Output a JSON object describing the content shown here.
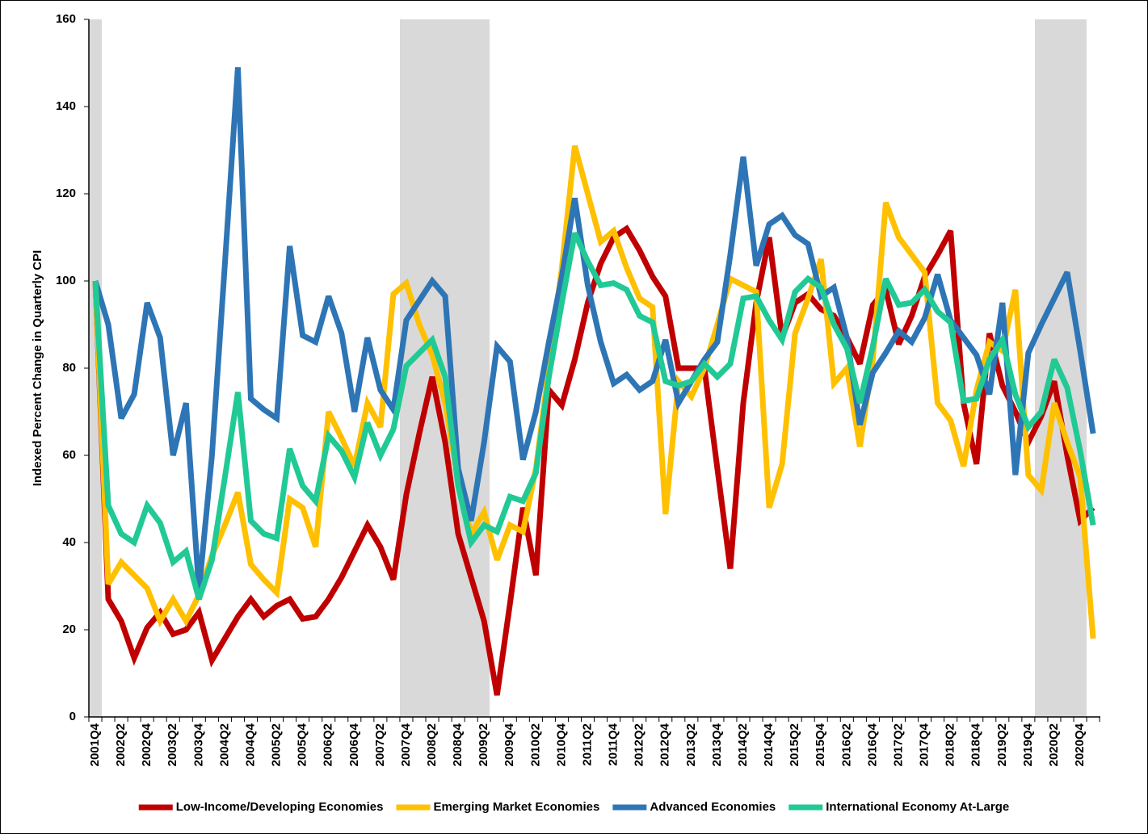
{
  "chart_data": {
    "type": "line",
    "y_label": "Indexed Percent Change in Quarterly CPI",
    "categories": [
      "2001Q4",
      null,
      "2002Q2",
      null,
      "2002Q4",
      null,
      "2003Q2",
      null,
      "2003Q4",
      null,
      "2004Q2",
      null,
      "2004Q4",
      null,
      "2005Q2",
      null,
      "2005Q4",
      null,
      "2006Q2",
      null,
      "2006Q4",
      null,
      "2007Q2",
      null,
      "2007Q4",
      null,
      "2008Q2",
      null,
      "2008Q4",
      null,
      "2009Q2",
      null,
      "2009Q4",
      null,
      "2010Q2",
      null,
      "2010Q4",
      null,
      "2011Q2",
      null,
      "2011Q4",
      null,
      "2012Q2",
      null,
      "2012Q4",
      null,
      "2013Q2",
      null,
      "2013Q4",
      null,
      "2014Q2",
      null,
      "2014Q4",
      null,
      "2015Q2",
      null,
      "2015Q4",
      null,
      "2016Q2",
      null,
      "2016Q4",
      null,
      "2017Q2",
      null,
      "2017Q4",
      null,
      "2018Q2",
      null,
      "2018Q4",
      null,
      "2019Q2",
      null,
      "2019Q4",
      null,
      "2020Q2",
      null,
      "2020Q4",
      null
    ],
    "series": [
      {
        "name": "Low-Income/Developing Economies",
        "color": "#c00000",
        "values": [
          100,
          27,
          22,
          13.5,
          20.5,
          24,
          19,
          20,
          24,
          13,
          18,
          23,
          27,
          23,
          25.5,
          27,
          22.5,
          23,
          27,
          32,
          38,
          44,
          39,
          31.5,
          51,
          65,
          78,
          63,
          42,
          32,
          22,
          5,
          26,
          48,
          32.5,
          75,
          71.5,
          82,
          95,
          104,
          110,
          112,
          107,
          101,
          96.5,
          80,
          80,
          80,
          57,
          34,
          72,
          95,
          110,
          87,
          95,
          97,
          93.5,
          92,
          87,
          81,
          94.5,
          98,
          85.5,
          92,
          101,
          106,
          111.5,
          72,
          58,
          88,
          76,
          70,
          63,
          69,
          77,
          60,
          45,
          48
        ]
      },
      {
        "name": "Emerging Market Economies",
        "color": "#ffc000",
        "values": [
          100,
          30.5,
          35.5,
          32.5,
          29.5,
          22,
          27,
          22,
          28,
          37,
          44,
          51.5,
          35,
          31.5,
          28.5,
          50,
          48,
          39,
          70,
          64,
          57.5,
          72,
          66.5,
          97,
          99.5,
          90,
          83,
          72,
          54,
          42,
          47,
          36,
          44,
          42.5,
          57,
          80,
          103,
          131,
          120,
          109,
          111.5,
          103,
          96,
          94,
          46.5,
          77,
          73.5,
          80,
          90,
          100.5,
          99,
          97.5,
          48,
          58,
          88,
          96,
          105,
          76.5,
          80,
          62,
          82,
          118,
          110,
          106,
          102,
          72,
          68,
          57.5,
          75,
          86,
          84,
          98,
          55.5,
          52,
          72,
          63,
          55,
          18
        ]
      },
      {
        "name": "Advanced Economies",
        "color": "#2e75b6",
        "values": [
          100,
          90,
          68.5,
          74,
          95,
          87,
          60,
          72,
          29,
          60,
          104,
          149,
          73,
          70.5,
          68.5,
          108,
          87.5,
          86,
          96.5,
          88,
          70,
          87,
          75,
          70.5,
          91,
          95.5,
          100,
          96.5,
          57,
          45,
          63,
          85,
          81.5,
          59,
          70,
          86,
          101,
          119,
          99,
          86,
          76.5,
          78.5,
          75,
          77,
          86.5,
          72,
          77,
          82,
          86,
          106,
          128.5,
          103.5,
          113,
          115,
          110.5,
          108.5,
          96.5,
          98.5,
          87,
          67,
          79,
          83.5,
          88.5,
          86,
          91.5,
          101.5,
          91,
          87,
          83,
          74,
          95,
          55.5,
          83.5,
          90,
          96,
          102,
          84,
          65
        ]
      },
      {
        "name": "International Economy At-Large",
        "color": "#21c995",
        "values": [
          100,
          48.5,
          42,
          40,
          48.5,
          44.5,
          35.5,
          38,
          27,
          36,
          55,
          74.5,
          45,
          42,
          41,
          61.5,
          53,
          49.5,
          64.5,
          61,
          55,
          67.5,
          60,
          66,
          80.5,
          83.5,
          86.5,
          78,
          53,
          40,
          44,
          42.5,
          50.5,
          49.5,
          56,
          78,
          95,
          111,
          104.5,
          99,
          99.5,
          98,
          92,
          90.5,
          77,
          76,
          77,
          81,
          78,
          81,
          96,
          96.5,
          91,
          86.5,
          97.5,
          100.5,
          98.5,
          90,
          84.5,
          72,
          85,
          100.5,
          94.5,
          95,
          98,
          93,
          90.5,
          72.5,
          73,
          82,
          86.5,
          74,
          66.5,
          70,
          82,
          75.5,
          61,
          44
        ]
      }
    ],
    "ylim": [
      0,
      160
    ],
    "yticks": [
      0,
      20,
      40,
      60,
      80,
      100,
      120,
      140,
      160
    ]
  }
}
